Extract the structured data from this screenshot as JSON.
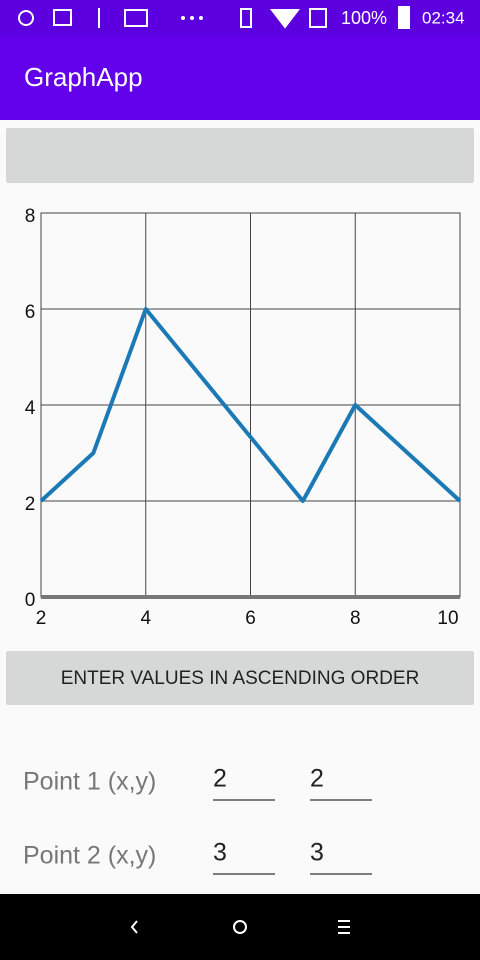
{
  "status_bar": {
    "battery": "100%",
    "time": "02:34"
  },
  "app_bar": {
    "title": "GraphApp"
  },
  "chart_data": {
    "type": "line",
    "x": [
      2,
      3,
      4,
      7,
      8,
      10
    ],
    "series": [
      {
        "color": "#1b79b5",
        "values": [
          2,
          3,
          6,
          2,
          4,
          2
        ]
      }
    ],
    "xlim": [
      2,
      10
    ],
    "ylim": [
      0,
      8
    ],
    "xticks": [
      2,
      4,
      6,
      8,
      10
    ],
    "yticks": [
      0,
      2,
      4,
      6,
      8
    ],
    "grid": true
  },
  "button": "ENTER VALUES IN ASCENDING ORDER",
  "points": [
    {
      "label": "Point 1 (x,y)",
      "x": "2",
      "y": "2"
    },
    {
      "label": "Point 2 (x,y)",
      "x": "3",
      "y": "3"
    }
  ]
}
